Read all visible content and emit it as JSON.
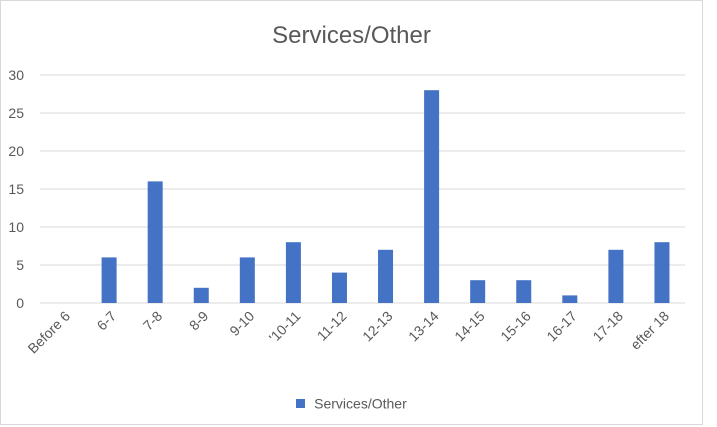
{
  "chart_data": {
    "type": "bar",
    "title": "Services/Other",
    "categories": [
      "Before 6",
      "6-7",
      "7-8",
      "8-9",
      "9-10",
      "'10-11",
      "11-12",
      "12-13",
      "13-14",
      "14-15",
      "15-16",
      "16-17",
      "17-18",
      "efter 18"
    ],
    "series": [
      {
        "name": "Services/Other",
        "values": [
          0,
          6,
          16,
          2,
          6,
          8,
          4,
          7,
          28,
          3,
          3,
          1,
          7,
          8
        ]
      }
    ],
    "ylim": [
      0,
      30
    ],
    "yticks": [
      0,
      5,
      10,
      15,
      20,
      25,
      30
    ],
    "grid": true,
    "legend_position": "bottom",
    "colors": {
      "bar": "#4472c4",
      "grid": "#d9d9d9",
      "text": "#595959"
    }
  }
}
